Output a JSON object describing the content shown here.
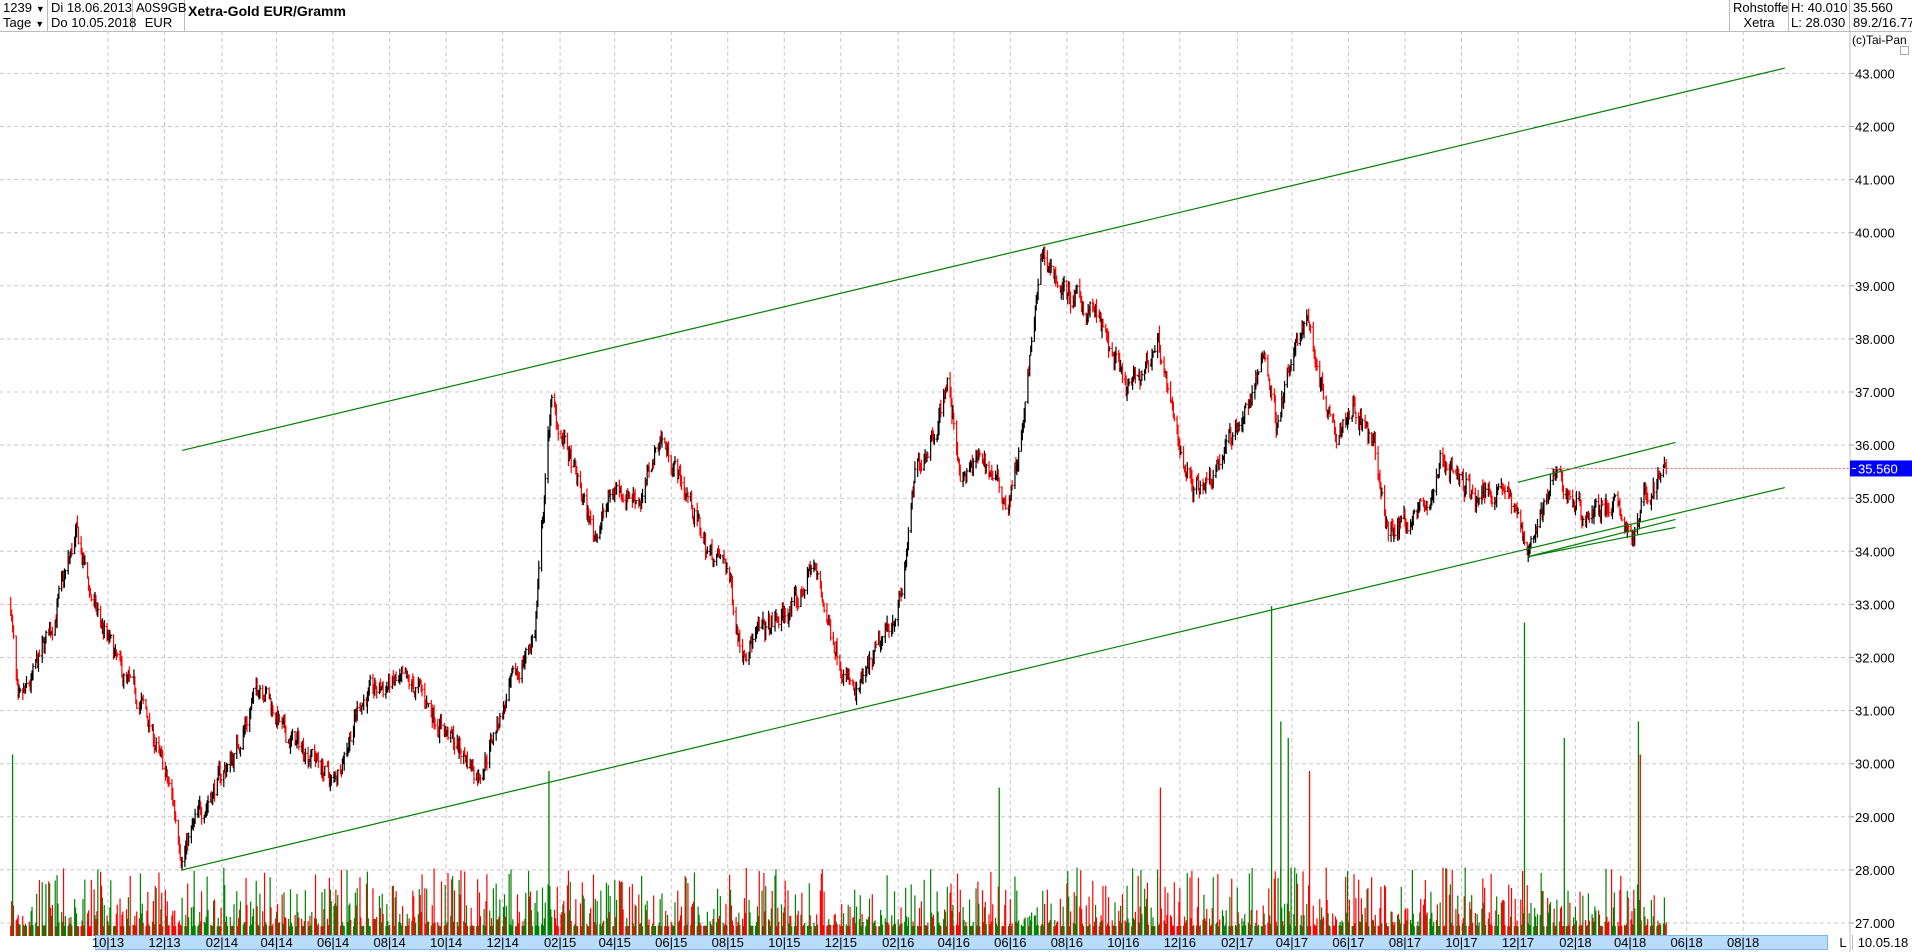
{
  "header": {
    "count": "1239",
    "period": "Tage",
    "date_from": "Di 18.06.2013",
    "date_to": "Do 10.05.2018",
    "isin": "A0S9GB",
    "currency": "EUR",
    "title": "Xetra-Gold EUR/Gramm",
    "category": "Rohstoffe",
    "exchange": "Xetra",
    "high": "H: 40.010",
    "low": "L: 28.030",
    "last": "35.560",
    "ratio": "89.2/16.77",
    "copyright": "(c)Tai-Pan",
    "scale_mode": "L",
    "end_date": "10.05.18"
  },
  "chart_data": {
    "type": "ohlc",
    "title": "Xetra-Gold EUR/Gramm",
    "ylim": [
      26.6,
      43.3
    ],
    "y_ticks": [
      "27.000",
      "28.000",
      "29.000",
      "30.000",
      "31.000",
      "32.000",
      "33.000",
      "34.000",
      "35.000",
      "36.000",
      "37.000",
      "38.000",
      "39.000",
      "40.000",
      "41.000",
      "42.000",
      "43.000"
    ],
    "last_price": "35.560",
    "x_ticks": [
      "10|13",
      "12|13",
      "02|14",
      "04|14",
      "06|14",
      "08|14",
      "10|14",
      "12|14",
      "02|15",
      "04|15",
      "06|15",
      "08|15",
      "10|15",
      "12|15",
      "02|16",
      "04|16",
      "06|16",
      "08|16",
      "10|16",
      "12|16",
      "02|17",
      "04|17",
      "06|17",
      "08|17",
      "10|17",
      "12|17",
      "02|18",
      "04|18",
      "06|18",
      "08|18"
    ],
    "grid": true,
    "colors": {
      "up": "#000000",
      "down": "#ff0000",
      "vol_up": "#008000",
      "vol_down": "#ff0000",
      "trend": "#008000",
      "last_label": "#0000ff"
    },
    "price_path": [
      [
        "2013-06-18",
        33.0
      ],
      [
        "2013-06-26",
        31.0
      ],
      [
        "2013-07-10",
        31.5
      ],
      [
        "2013-08-01",
        32.6
      ],
      [
        "2013-08-28",
        34.3
      ],
      [
        "2013-09-15",
        33.0
      ],
      [
        "2013-10-15",
        31.7
      ],
      [
        "2013-11-10",
        31.0
      ],
      [
        "2013-12-10",
        29.3
      ],
      [
        "2013-12-20",
        28.3
      ],
      [
        "2014-01-15",
        29.3
      ],
      [
        "2014-02-15",
        30.2
      ],
      [
        "2014-03-15",
        31.6
      ],
      [
        "2014-04-10",
        30.5
      ],
      [
        "2014-05-10",
        30.2
      ],
      [
        "2014-06-01",
        29.6
      ],
      [
        "2014-07-01",
        31.2
      ],
      [
        "2014-08-01",
        31.5
      ],
      [
        "2014-09-01",
        31.4
      ],
      [
        "2014-10-01",
        30.6
      ],
      [
        "2014-11-05",
        29.8
      ],
      [
        "2014-12-01",
        31.0
      ],
      [
        "2015-01-05",
        32.5
      ],
      [
        "2015-01-22",
        36.8
      ],
      [
        "2015-02-10",
        35.8
      ],
      [
        "2015-03-10",
        34.3
      ],
      [
        "2015-04-01",
        35.2
      ],
      [
        "2015-05-01",
        35.0
      ],
      [
        "2015-05-20",
        36.2
      ],
      [
        "2015-06-20",
        35.0
      ],
      [
        "2015-07-10",
        34.0
      ],
      [
        "2015-08-01",
        33.7
      ],
      [
        "2015-08-15",
        32.2
      ],
      [
        "2015-09-10",
        32.5
      ],
      [
        "2015-10-15",
        33.0
      ],
      [
        "2015-11-01",
        33.8
      ],
      [
        "2015-11-20",
        32.5
      ],
      [
        "2015-12-17",
        31.2
      ],
      [
        "2016-01-15",
        32.3
      ],
      [
        "2016-02-05",
        33.2
      ],
      [
        "2016-02-20",
        35.5
      ],
      [
        "2016-03-15",
        36.5
      ],
      [
        "2016-03-25",
        37.2
      ],
      [
        "2016-04-10",
        35.3
      ],
      [
        "2016-05-01",
        35.8
      ],
      [
        "2016-05-30",
        34.9
      ],
      [
        "2016-06-15",
        36.3
      ],
      [
        "2016-06-24",
        37.9
      ],
      [
        "2016-07-06",
        39.6
      ],
      [
        "2016-08-01",
        38.8
      ],
      [
        "2016-09-01",
        38.5
      ],
      [
        "2016-10-04",
        37.0
      ],
      [
        "2016-10-20",
        37.3
      ],
      [
        "2016-11-08",
        38.0
      ],
      [
        "2016-11-25",
        36.3
      ],
      [
        "2016-12-15",
        35.2
      ],
      [
        "2017-01-05",
        35.5
      ],
      [
        "2017-01-30",
        36.3
      ],
      [
        "2017-02-20",
        37.0
      ],
      [
        "2017-03-01",
        37.8
      ],
      [
        "2017-03-15",
        36.5
      ],
      [
        "2017-04-17",
        38.5
      ],
      [
        "2017-05-05",
        37.0
      ],
      [
        "2017-05-20",
        36.3
      ],
      [
        "2017-06-06",
        36.8
      ],
      [
        "2017-07-01",
        35.8
      ],
      [
        "2017-07-12",
        34.4
      ],
      [
        "2017-08-05",
        34.6
      ],
      [
        "2017-09-01",
        35.0
      ],
      [
        "2017-09-08",
        35.8
      ],
      [
        "2017-10-15",
        35.0
      ],
      [
        "2017-11-15",
        35.3
      ],
      [
        "2017-12-12",
        34.1
      ],
      [
        "2018-01-10",
        35.4
      ],
      [
        "2018-02-10",
        34.7
      ],
      [
        "2018-03-10",
        34.9
      ],
      [
        "2018-04-05",
        34.3
      ],
      [
        "2018-04-20",
        35.1
      ],
      [
        "2018-05-10",
        35.56
      ]
    ],
    "volume_spikes": [
      [
        "2013-06-20",
        0.55
      ],
      [
        "2015-01-20",
        0.5
      ],
      [
        "2016-05-20",
        0.45
      ],
      [
        "2016-11-10",
        0.45
      ],
      [
        "2017-03-10",
        1.0
      ],
      [
        "2017-03-20",
        0.65
      ],
      [
        "2017-03-28",
        0.6
      ],
      [
        "2017-04-20",
        0.5
      ],
      [
        "2017-12-08",
        0.95
      ],
      [
        "2018-01-20",
        0.6
      ],
      [
        "2018-04-10",
        0.65
      ],
      [
        "2018-04-12",
        0.55
      ]
    ],
    "trend_lines": [
      {
        "from": [
          "2013-12-20",
          35.9
        ],
        "to": [
          "2018-09-15",
          43.1
        ]
      },
      {
        "from": [
          "2013-12-20",
          28.0
        ],
        "to": [
          "2018-09-15",
          35.2
        ]
      },
      {
        "from": [
          "2017-12-01",
          35.3
        ],
        "to": [
          "2018-05-20",
          36.05
        ]
      },
      {
        "from": [
          "2017-12-12",
          33.9
        ],
        "to": [
          "2018-05-20",
          34.6
        ]
      },
      {
        "from": [
          "2017-12-12",
          33.9
        ],
        "to": [
          "2018-05-20",
          34.45
        ]
      }
    ]
  }
}
